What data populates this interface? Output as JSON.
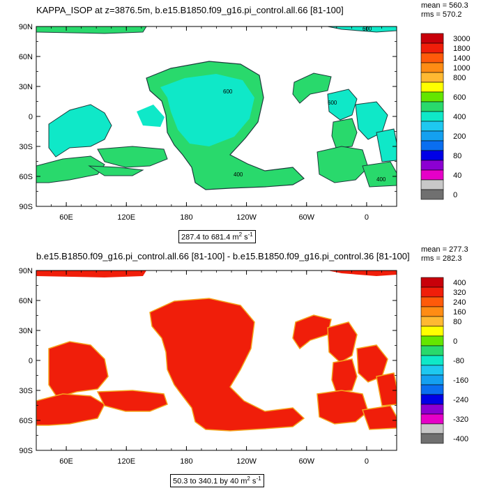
{
  "colors": {
    "ocean_top": "#29d96c",
    "ocean_top_alt": "#0fe8c8",
    "land": "#ffffff",
    "ocean_bottom": "#f01e0a",
    "ocean_bottom_edge": "#f5a31c",
    "contour": "#1b3b3b"
  },
  "chart_data": [
    {
      "type": "heatmap",
      "title": "KAPPA_ISOP at z=3876.5m, b.e15.B1850.f09_g16.pi_control.all.66 [81-100]",
      "stats": {
        "mean": "mean = 560.3",
        "rms": "rms = 570.2"
      },
      "range_label": "287.4 to 681.4 m",
      "range_unit_sup": "2",
      "range_unit_tail": " s",
      "range_unit_sup2": "-1",
      "x_ticks": [
        "60E",
        "120E",
        "180",
        "120W",
        "60W",
        "0"
      ],
      "y_ticks": [
        "90N",
        "60N",
        "30N",
        "0",
        "30S",
        "60S",
        "90S"
      ],
      "contour_labels": [
        "600",
        "600",
        "400",
        "400",
        "600"
      ],
      "colorbar": {
        "labels": [
          "3000",
          "1800",
          "1400",
          "1000",
          "800",
          "600",
          "400",
          "200",
          "80",
          "40",
          "0"
        ],
        "colors": [
          "#c8000a",
          "#f01e0a",
          "#ff5a0a",
          "#ff8c14",
          "#ffb932",
          "#ffff00",
          "#64e600",
          "#29d96c",
          "#0fe8c8",
          "#1ec8f0",
          "#14a0f0",
          "#0a6ef0",
          "#0000e6",
          "#8c00d2",
          "#e600c8",
          "#c8c8c8",
          "#707070"
        ]
      }
    },
    {
      "type": "heatmap",
      "title": "b.e15.B1850.f09_g16.pi_control.all.66 [81-100] - b.e15.B1850.f09_g16.pi_control.36 [81-100]",
      "stats": {
        "mean": "mean = 277.3",
        "rms": "rms = 282.3"
      },
      "range_label": "50.3 to 340.1 by 40 m",
      "range_unit_sup": "2",
      "range_unit_tail": " s",
      "range_unit_sup2": "-1",
      "x_ticks": [
        "60E",
        "120E",
        "180",
        "120W",
        "60W",
        "0"
      ],
      "y_ticks": [
        "90N",
        "60N",
        "30N",
        "0",
        "30S",
        "60S",
        "90S"
      ],
      "colorbar": {
        "labels": [
          "400",
          "320",
          "240",
          "160",
          "80",
          "0",
          "-80",
          "-160",
          "-240",
          "-320",
          "-400"
        ],
        "colors": [
          "#c8000a",
          "#f01e0a",
          "#ff5a0a",
          "#ff8c14",
          "#ffb932",
          "#ffff00",
          "#64e600",
          "#29d96c",
          "#0fe8c8",
          "#1ec8f0",
          "#14a0f0",
          "#0a6ef0",
          "#0000e6",
          "#8c00d2",
          "#e600c8",
          "#c8c8c8",
          "#707070"
        ]
      }
    }
  ]
}
